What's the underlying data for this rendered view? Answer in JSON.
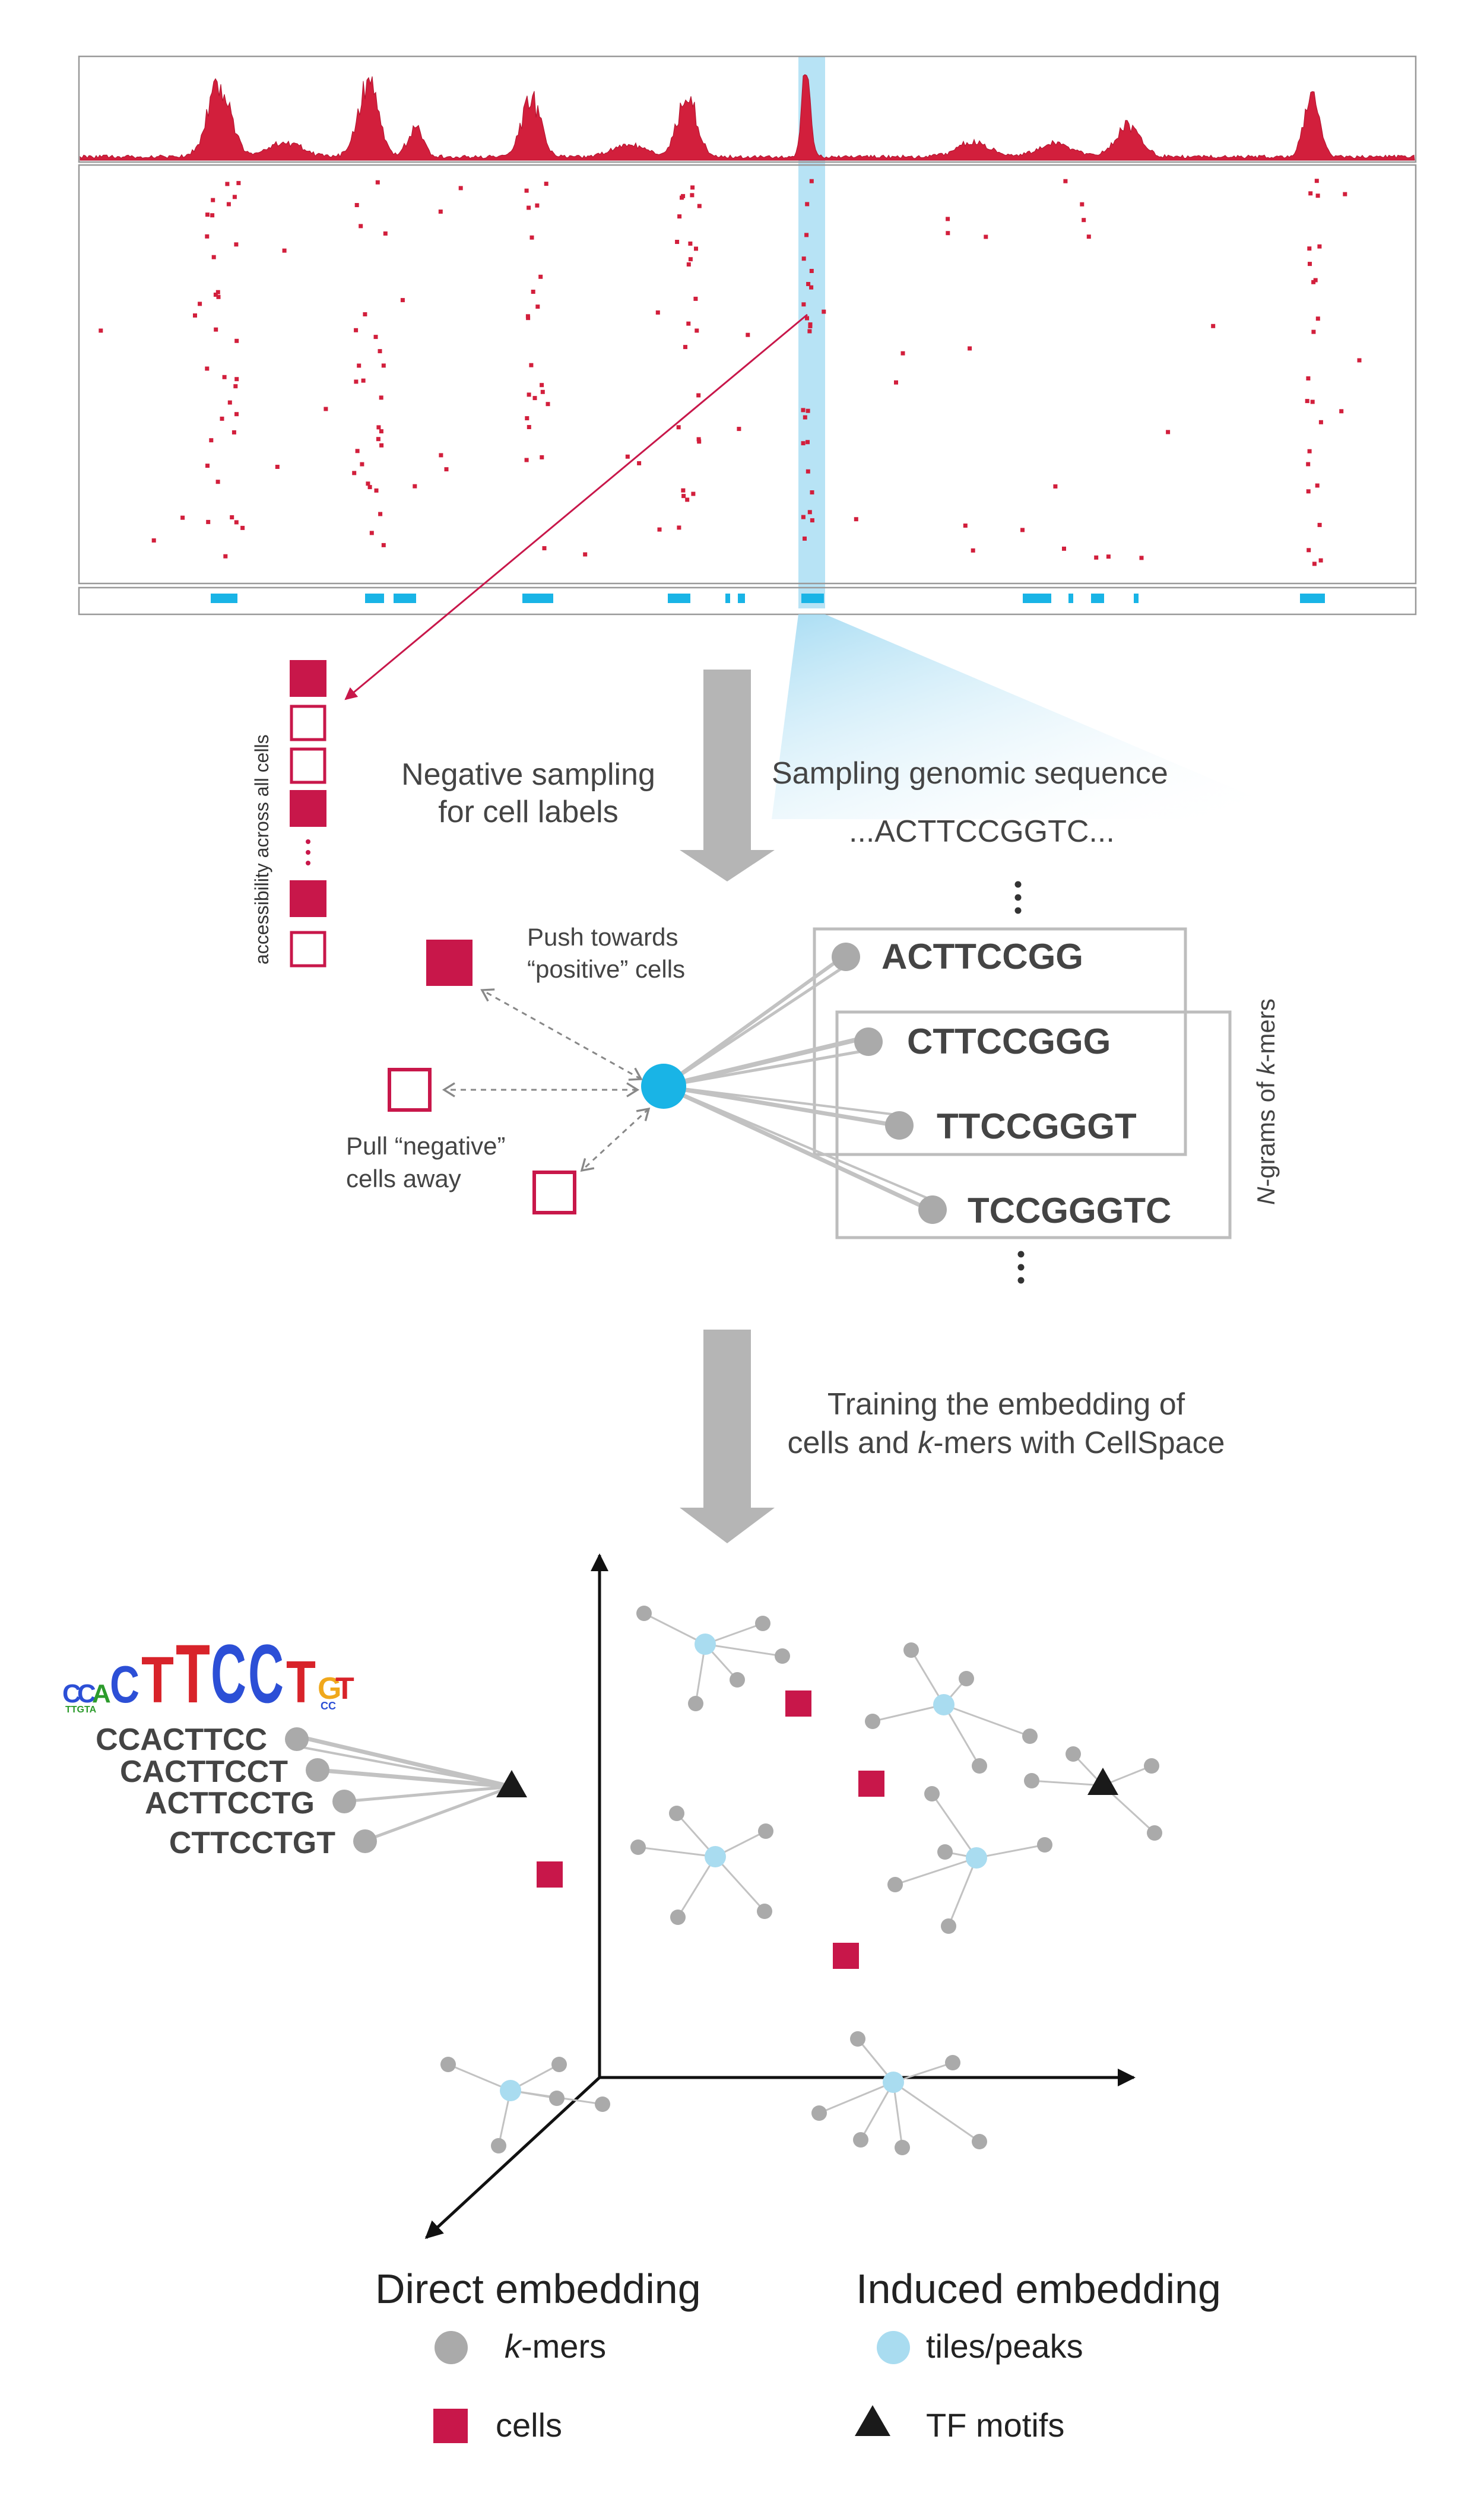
{
  "colors": {
    "accessible": "#d21f3c",
    "cell": "#c8174a",
    "peak": "#19b4e6",
    "tile": "#a9dcf0",
    "kmer": "#aaaaaa",
    "frame": "#9a9a9a",
    "arrow": "#999999",
    "text": "#333333",
    "motif": "#1a1a1a"
  },
  "labels": {
    "accessibility_axis": "accessibility across all cells",
    "negative_sampling_line1": "Negative sampling",
    "negative_sampling_line2": "for cell labels",
    "sampling_genomic": "Sampling genomic sequence",
    "sequence": "...ACTTCCGGTC...",
    "push_line1": "Push towards",
    "push_line2": "“positive” cells",
    "pull_line1": "Pull “negative”",
    "pull_line2": "cells away",
    "ngrams_n": "N",
    "ngrams_mid": "-grams of ",
    "ngrams_k": "k",
    "ngrams_end": "-mers",
    "training_line1": "Training the embedding of",
    "training_line2_k": "k",
    "training_line2_rest": "-mers with CellSpace",
    "training_line2_start": "cells and "
  },
  "kmers": [
    "ACTTCCGG",
    "CTTCCGGG",
    "TTCCGGGT",
    "TCCGGGTC"
  ],
  "motif_kmers": [
    "CCACTTCC",
    "CACTTCCT",
    "ACTTCCTG",
    "CTTCCTGT"
  ],
  "legend": {
    "direct_title": "Direct embedding",
    "induced_title": "Induced embedding",
    "kmers_k": "k",
    "kmers_rest": "-mers",
    "cells": "cells",
    "tiles": "tiles/peaks",
    "tf_motifs": "TF motifs"
  }
}
